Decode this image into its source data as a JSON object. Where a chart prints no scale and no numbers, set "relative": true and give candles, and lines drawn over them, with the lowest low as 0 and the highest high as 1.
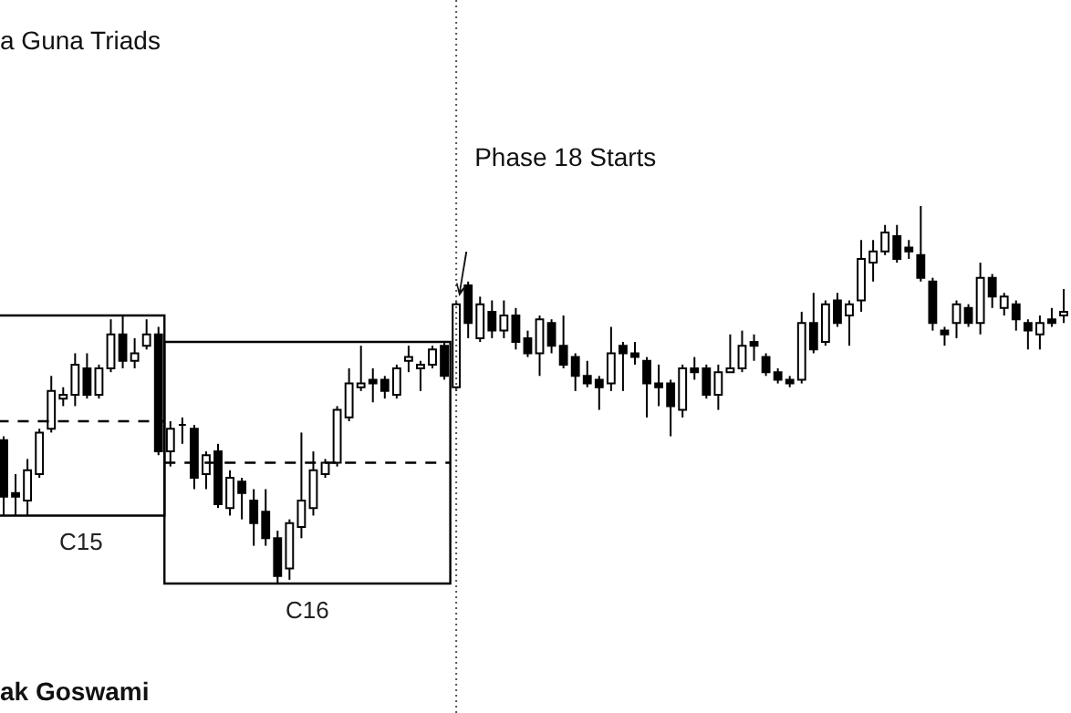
{
  "chart_data": {
    "type": "candlestick",
    "title": "a Guna Triads",
    "relative": true,
    "categories": [
      null,
      null,
      null,
      null,
      null,
      null,
      null,
      null,
      null,
      null,
      null,
      null,
      null,
      null,
      null,
      null,
      null,
      null,
      null,
      null,
      null,
      null,
      null,
      null,
      null,
      null,
      null,
      null,
      null,
      null,
      null,
      null,
      null,
      null,
      null,
      null,
      null,
      null,
      null,
      null,
      null,
      null,
      null,
      null,
      null,
      null,
      null,
      null,
      null,
      null,
      null,
      null,
      null,
      null,
      null,
      null,
      null,
      null,
      null,
      null,
      null,
      null,
      null,
      null,
      null,
      null,
      null,
      null,
      null,
      null,
      null,
      null,
      null,
      null,
      null,
      null,
      null,
      null,
      null,
      null,
      null,
      null,
      null,
      null,
      null,
      null,
      null,
      null,
      null,
      null
    ],
    "ohlc": [
      [
        0.38,
        0.39,
        0.18,
        0.23
      ],
      [
        0.24,
        0.29,
        0.18,
        0.23
      ],
      [
        0.22,
        0.33,
        0.18,
        0.3
      ],
      [
        0.29,
        0.41,
        0.28,
        0.4
      ],
      [
        0.41,
        0.55,
        0.4,
        0.51
      ],
      [
        0.49,
        0.52,
        0.47,
        0.5
      ],
      [
        0.5,
        0.61,
        0.47,
        0.58
      ],
      [
        0.57,
        0.61,
        0.49,
        0.5
      ],
      [
        0.5,
        0.58,
        0.49,
        0.57
      ],
      [
        0.57,
        0.7,
        0.56,
        0.66
      ],
      [
        0.66,
        0.71,
        0.57,
        0.59
      ],
      [
        0.59,
        0.65,
        0.57,
        0.61
      ],
      [
        0.63,
        0.7,
        0.62,
        0.66
      ],
      [
        0.66,
        0.68,
        0.34,
        0.35
      ],
      [
        0.35,
        0.43,
        0.31,
        0.41
      ],
      [
        0.42,
        0.44,
        0.37,
        0.42
      ],
      [
        0.41,
        0.42,
        0.25,
        0.28
      ],
      [
        0.29,
        0.35,
        0.25,
        0.34
      ],
      [
        0.35,
        0.37,
        0.2,
        0.21
      ],
      [
        0.2,
        0.3,
        0.18,
        0.28
      ],
      [
        0.27,
        0.28,
        0.17,
        0.24
      ],
      [
        0.22,
        0.25,
        0.1,
        0.16
      ],
      [
        0.19,
        0.25,
        0.1,
        0.12
      ],
      [
        0.12,
        0.14,
        0.0,
        0.02
      ],
      [
        0.04,
        0.17,
        0.01,
        0.16
      ],
      [
        0.15,
        0.4,
        0.12,
        0.22
      ],
      [
        0.2,
        0.35,
        0.18,
        0.3
      ],
      [
        0.29,
        0.33,
        0.28,
        0.32
      ],
      [
        0.32,
        0.47,
        0.31,
        0.46
      ],
      [
        0.44,
        0.57,
        0.43,
        0.53
      ],
      [
        0.52,
        0.63,
        0.51,
        0.53
      ],
      [
        0.54,
        0.57,
        0.48,
        0.53
      ],
      [
        0.54,
        0.55,
        0.49,
        0.51
      ],
      [
        0.5,
        0.58,
        0.49,
        0.57
      ],
      [
        0.59,
        0.63,
        0.56,
        0.6
      ],
      [
        0.57,
        0.59,
        0.51,
        0.58
      ],
      [
        0.58,
        0.63,
        0.57,
        0.62
      ],
      [
        0.63,
        0.64,
        0.54,
        0.55
      ],
      [
        0.52,
        0.75,
        0.51,
        0.74
      ],
      [
        0.79,
        0.8,
        0.65,
        0.69
      ],
      [
        0.65,
        0.76,
        0.64,
        0.74
      ],
      [
        0.72,
        0.75,
        0.65,
        0.67
      ],
      [
        0.67,
        0.75,
        0.65,
        0.71
      ],
      [
        0.71,
        0.73,
        0.62,
        0.64
      ],
      [
        0.65,
        0.67,
        0.6,
        0.61
      ],
      [
        0.61,
        0.71,
        0.55,
        0.7
      ],
      [
        0.69,
        0.7,
        0.61,
        0.63
      ],
      [
        0.63,
        0.71,
        0.57,
        0.58
      ],
      [
        0.6,
        0.61,
        0.51,
        0.55
      ],
      [
        0.55,
        0.59,
        0.52,
        0.53
      ],
      [
        0.54,
        0.55,
        0.46,
        0.52
      ],
      [
        0.53,
        0.68,
        0.51,
        0.61
      ],
      [
        0.63,
        0.64,
        0.51,
        0.61
      ],
      [
        0.61,
        0.64,
        0.58,
        0.6
      ],
      [
        0.59,
        0.6,
        0.44,
        0.53
      ],
      [
        0.53,
        0.58,
        0.47,
        0.52
      ],
      [
        0.53,
        0.54,
        0.39,
        0.47
      ],
      [
        0.46,
        0.58,
        0.44,
        0.57
      ],
      [
        0.57,
        0.6,
        0.54,
        0.56
      ],
      [
        0.57,
        0.58,
        0.49,
        0.5
      ],
      [
        0.5,
        0.58,
        0.46,
        0.56
      ],
      [
        0.56,
        0.66,
        0.56,
        0.57
      ],
      [
        0.57,
        0.67,
        0.56,
        0.63
      ],
      [
        0.64,
        0.66,
        0.59,
        0.63
      ],
      [
        0.6,
        0.61,
        0.55,
        0.56
      ],
      [
        0.56,
        0.57,
        0.53,
        0.54
      ],
      [
        0.54,
        0.55,
        0.52,
        0.53
      ],
      [
        0.54,
        0.72,
        0.53,
        0.69
      ],
      [
        0.69,
        0.77,
        0.61,
        0.62
      ],
      [
        0.64,
        0.75,
        0.63,
        0.74
      ],
      [
        0.75,
        0.77,
        0.68,
        0.69
      ],
      [
        0.71,
        0.75,
        0.63,
        0.74
      ],
      [
        0.75,
        0.91,
        0.72,
        0.86
      ],
      [
        0.85,
        0.91,
        0.8,
        0.88
      ],
      [
        0.88,
        0.95,
        0.87,
        0.93
      ],
      [
        0.92,
        0.95,
        0.85,
        0.86
      ],
      [
        0.89,
        0.91,
        0.86,
        0.88
      ],
      [
        0.87,
        1.0,
        0.8,
        0.81
      ],
      [
        0.8,
        0.81,
        0.67,
        0.69
      ],
      [
        0.67,
        0.68,
        0.63,
        0.66
      ],
      [
        0.69,
        0.75,
        0.65,
        0.74
      ],
      [
        0.73,
        0.74,
        0.68,
        0.69
      ],
      [
        0.69,
        0.85,
        0.66,
        0.81
      ],
      [
        0.81,
        0.82,
        0.73,
        0.76
      ],
      [
        0.73,
        0.77,
        0.71,
        0.76
      ],
      [
        0.74,
        0.75,
        0.67,
        0.7
      ],
      [
        0.69,
        0.7,
        0.62,
        0.67
      ],
      [
        0.66,
        0.71,
        0.62,
        0.69
      ],
      [
        0.7,
        0.73,
        0.68,
        0.69
      ],
      [
        0.71,
        0.78,
        0.69,
        0.72
      ]
    ],
    "ref_lines": [
      {
        "axis": "y",
        "value": 0.43,
        "line_style": "dashed"
      },
      {
        "axis": "y",
        "value": 0.32,
        "line_style": "dashed"
      }
    ],
    "annotations": [
      "C15",
      "C16",
      "Phase 18 Starts",
      "ak Goswami"
    ]
  }
}
